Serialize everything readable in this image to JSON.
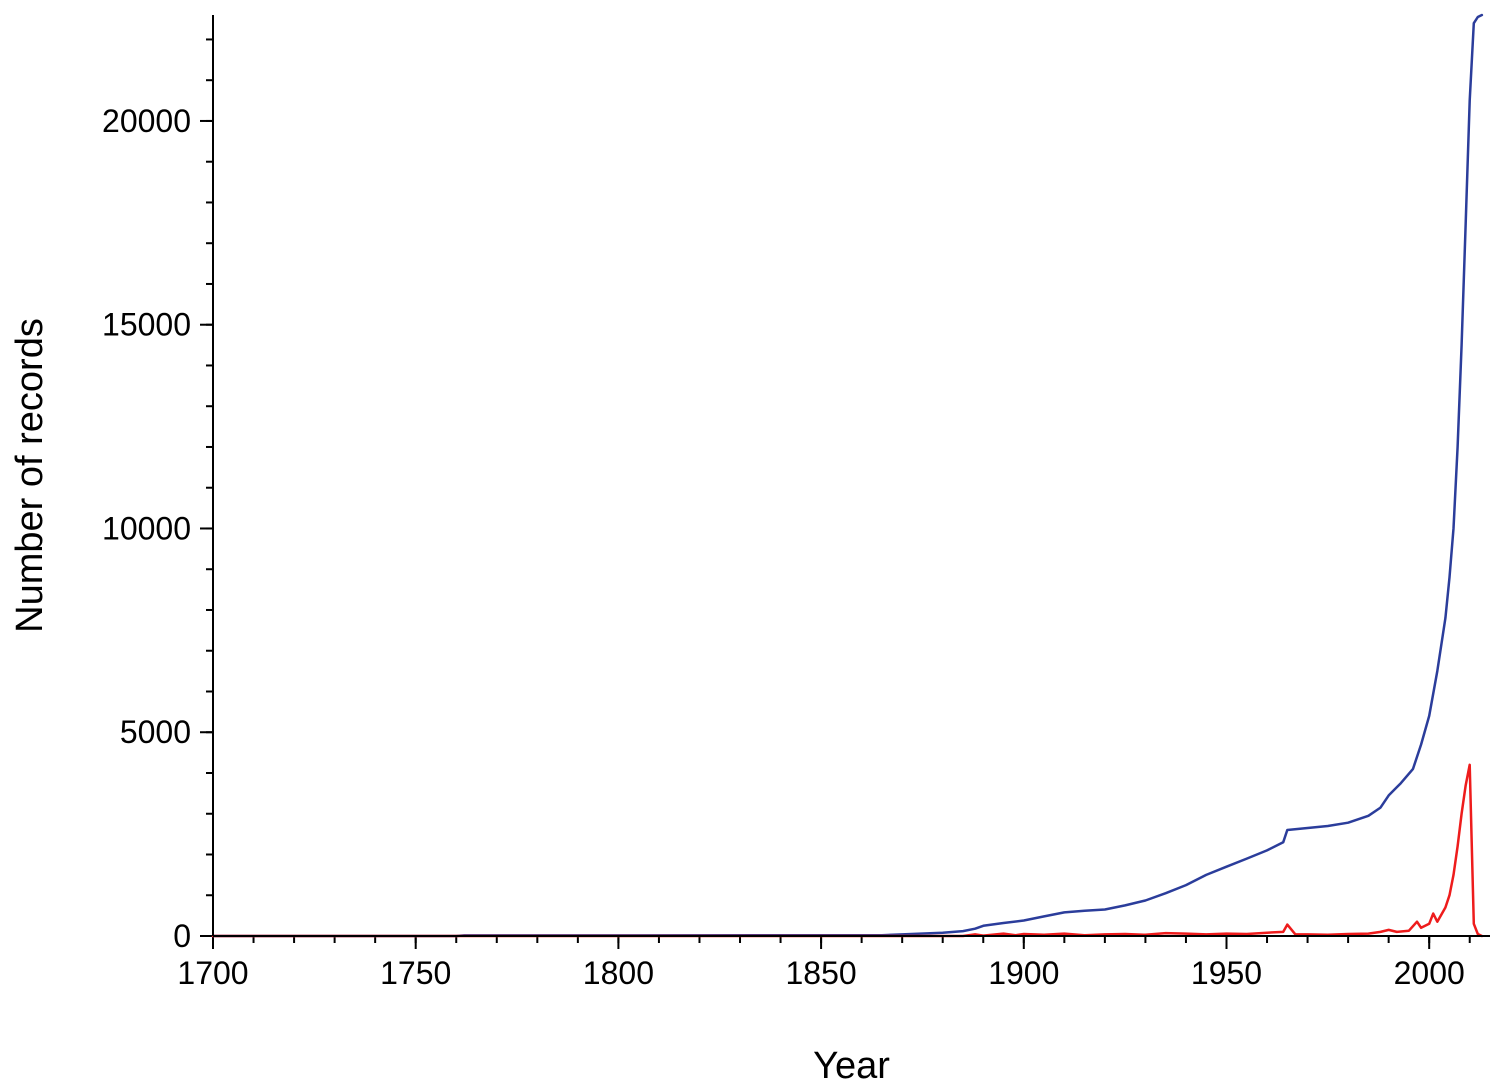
{
  "chart_data": {
    "type": "line",
    "title": "",
    "xlabel": "Year",
    "ylabel": "Number of records",
    "xlim": [
      1700,
      2015
    ],
    "ylim": [
      0,
      22600
    ],
    "x_ticks": [
      1700,
      1750,
      1800,
      1850,
      1900,
      1950,
      2000
    ],
    "y_ticks": [
      0,
      5000,
      10000,
      15000,
      20000
    ],
    "x_minor_step": 10,
    "y_minor_step": 1000,
    "grid": false,
    "legend": "none",
    "series": [
      {
        "color": "#2b3d9b",
        "points": [
          [
            1700,
            0
          ],
          [
            1760,
            0
          ],
          [
            1762,
            15
          ],
          [
            1800,
            15
          ],
          [
            1850,
            20
          ],
          [
            1865,
            20
          ],
          [
            1870,
            40
          ],
          [
            1880,
            80
          ],
          [
            1885,
            120
          ],
          [
            1888,
            180
          ],
          [
            1890,
            250
          ],
          [
            1895,
            320
          ],
          [
            1900,
            380
          ],
          [
            1905,
            480
          ],
          [
            1910,
            580
          ],
          [
            1915,
            620
          ],
          [
            1920,
            650
          ],
          [
            1925,
            750
          ],
          [
            1930,
            870
          ],
          [
            1935,
            1050
          ],
          [
            1940,
            1250
          ],
          [
            1945,
            1500
          ],
          [
            1950,
            1700
          ],
          [
            1955,
            1900
          ],
          [
            1960,
            2100
          ],
          [
            1964,
            2300
          ],
          [
            1965,
            2600
          ],
          [
            1970,
            2650
          ],
          [
            1975,
            2700
          ],
          [
            1980,
            2780
          ],
          [
            1985,
            2950
          ],
          [
            1988,
            3150
          ],
          [
            1990,
            3450
          ],
          [
            1993,
            3750
          ],
          [
            1996,
            4100
          ],
          [
            1998,
            4700
          ],
          [
            2000,
            5400
          ],
          [
            2002,
            6500
          ],
          [
            2004,
            7800
          ],
          [
            2005,
            8800
          ],
          [
            2006,
            10000
          ],
          [
            2007,
            12000
          ],
          [
            2008,
            14500
          ],
          [
            2009,
            17500
          ],
          [
            2010,
            20500
          ],
          [
            2011,
            22400
          ],
          [
            2012,
            22550
          ],
          [
            2013,
            22600
          ]
        ]
      },
      {
        "color": "#ee1c1c",
        "points": [
          [
            1700,
            0
          ],
          [
            1850,
            0
          ],
          [
            1885,
            0
          ],
          [
            1888,
            40
          ],
          [
            1890,
            10
          ],
          [
            1895,
            60
          ],
          [
            1898,
            20
          ],
          [
            1900,
            50
          ],
          [
            1905,
            30
          ],
          [
            1910,
            60
          ],
          [
            1915,
            20
          ],
          [
            1920,
            40
          ],
          [
            1925,
            50
          ],
          [
            1930,
            30
          ],
          [
            1935,
            70
          ],
          [
            1940,
            60
          ],
          [
            1945,
            40
          ],
          [
            1950,
            60
          ],
          [
            1955,
            50
          ],
          [
            1960,
            80
          ],
          [
            1964,
            100
          ],
          [
            1965,
            280
          ],
          [
            1967,
            40
          ],
          [
            1970,
            40
          ],
          [
            1975,
            30
          ],
          [
            1980,
            50
          ],
          [
            1985,
            60
          ],
          [
            1988,
            100
          ],
          [
            1990,
            150
          ],
          [
            1992,
            100
          ],
          [
            1995,
            130
          ],
          [
            1997,
            350
          ],
          [
            1998,
            200
          ],
          [
            2000,
            300
          ],
          [
            2001,
            550
          ],
          [
            2002,
            350
          ],
          [
            2004,
            700
          ],
          [
            2005,
            1000
          ],
          [
            2006,
            1500
          ],
          [
            2007,
            2200
          ],
          [
            2008,
            3000
          ],
          [
            2009,
            3700
          ],
          [
            2010,
            4200
          ],
          [
            2011,
            300
          ],
          [
            2012,
            50
          ],
          [
            2013,
            0
          ]
        ]
      }
    ]
  }
}
